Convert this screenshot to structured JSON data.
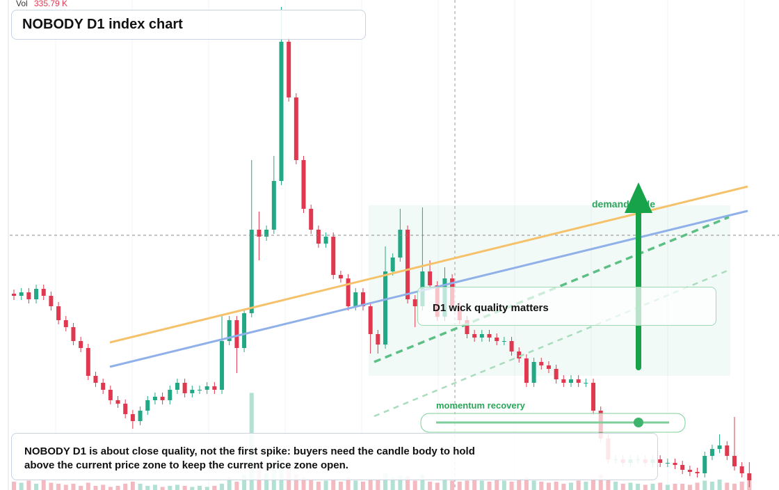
{
  "chart_data": {
    "type": "candlestick",
    "title": "NOBODY D1 index chart",
    "volume_label": "Vol",
    "volume_value_label": "335.79 K",
    "annotations": {
      "wick": "D1 wick quality matters",
      "demand": "demand node",
      "momentum": "momentum recovery",
      "note": "NOBODY D1 is about close quality, not the first spike: buyers need the candle body to hold above the current price zone to keep the current price zone open."
    },
    "up_color": "#22a884",
    "down_color": "#e0384e",
    "ylim": [
      0,
      704
    ],
    "vlim": [
      0,
      1000
    ],
    "open": [
      282,
      279,
      284,
      274,
      289,
      279,
      264,
      244,
      234,
      214,
      204,
      164,
      154,
      144,
      129,
      124,
      109,
      99,
      114,
      129,
      134,
      129,
      144,
      154,
      139,
      144,
      144,
      149,
      144,
      214,
      244,
      204,
      254,
      374,
      364,
      374,
      444,
      644,
      564,
      474,
      404,
      374,
      354,
      364,
      309,
      304,
      264,
      284,
      264,
      224,
      209,
      314,
      334,
      374,
      274,
      264,
      314,
      294,
      249,
      304,
      264,
      244,
      224,
      219,
      224,
      219,
      214,
      214,
      199,
      189,
      154,
      184,
      179,
      174,
      159,
      154,
      159,
      154,
      154,
      114,
      74,
      44,
      44,
      39,
      44,
      44,
      39,
      44,
      39,
      39,
      36,
      29,
      26,
      24,
      49,
      59,
      64,
      49,
      34,
      24
    ],
    "high": [
      288,
      290,
      290,
      295,
      295,
      285,
      270,
      250,
      240,
      220,
      210,
      170,
      160,
      150,
      135,
      130,
      115,
      120,
      135,
      140,
      140,
      150,
      160,
      160,
      150,
      150,
      155,
      155,
      250,
      250,
      250,
      260,
      474,
      400,
      380,
      480,
      694,
      650,
      570,
      480,
      410,
      380,
      370,
      370,
      315,
      310,
      290,
      290,
      270,
      230,
      350,
      340,
      404,
      380,
      280,
      406,
      330,
      300,
      320,
      310,
      270,
      250,
      230,
      230,
      230,
      225,
      220,
      220,
      205,
      195,
      190,
      190,
      185,
      180,
      165,
      165,
      165,
      160,
      160,
      120,
      80,
      50,
      50,
      50,
      50,
      50,
      50,
      50,
      45,
      45,
      42,
      35,
      32,
      55,
      65,
      80,
      70,
      105,
      40,
      40
    ],
    "low": [
      273,
      273,
      268,
      268,
      273,
      258,
      238,
      228,
      208,
      198,
      158,
      148,
      138,
      123,
      118,
      103,
      88,
      93,
      108,
      123,
      123,
      123,
      138,
      133,
      133,
      138,
      138,
      138,
      138,
      208,
      168,
      198,
      248,
      330,
      358,
      368,
      438,
      558,
      468,
      398,
      368,
      348,
      348,
      303,
      298,
      258,
      258,
      258,
      196,
      196,
      203,
      308,
      328,
      268,
      234,
      258,
      288,
      243,
      243,
      258,
      238,
      218,
      213,
      213,
      213,
      208,
      208,
      193,
      183,
      148,
      148,
      173,
      168,
      153,
      148,
      148,
      148,
      148,
      108,
      68,
      38,
      38,
      33,
      33,
      38,
      33,
      33,
      33,
      33,
      30,
      23,
      20,
      18,
      18,
      43,
      53,
      43,
      28,
      18,
      4
    ],
    "close": [
      279,
      284,
      274,
      289,
      279,
      264,
      244,
      234,
      214,
      204,
      164,
      154,
      144,
      129,
      124,
      109,
      99,
      114,
      129,
      134,
      129,
      144,
      154,
      139,
      144,
      144,
      149,
      144,
      214,
      244,
      204,
      254,
      374,
      364,
      374,
      444,
      644,
      564,
      474,
      404,
      374,
      354,
      364,
      309,
      304,
      264,
      284,
      264,
      224,
      209,
      314,
      334,
      374,
      274,
      264,
      314,
      294,
      249,
      304,
      264,
      244,
      224,
      219,
      224,
      219,
      214,
      214,
      199,
      189,
      154,
      184,
      179,
      174,
      159,
      154,
      159,
      154,
      154,
      114,
      74,
      44,
      44,
      39,
      44,
      44,
      39,
      44,
      39,
      39,
      36,
      29,
      26,
      24,
      49,
      59,
      64,
      49,
      34,
      24,
      14
    ],
    "volume": [
      80,
      70,
      90,
      60,
      100,
      70,
      60,
      50,
      60,
      40,
      70,
      40,
      50,
      30,
      40,
      60,
      80,
      60,
      40,
      50,
      30,
      40,
      50,
      40,
      30,
      40,
      30,
      40,
      60,
      120,
      80,
      150,
      930,
      200,
      160,
      280,
      300,
      200,
      150,
      120,
      100,
      80,
      90,
      100,
      80,
      120,
      90,
      80,
      110,
      100,
      160,
      120,
      140,
      130,
      90,
      150,
      80,
      70,
      110,
      90,
      80,
      90,
      100,
      90,
      80,
      100,
      90,
      80,
      100,
      120,
      90,
      80,
      70,
      80,
      60,
      70,
      90,
      80,
      110,
      150,
      100,
      80,
      60,
      70,
      60,
      50,
      60,
      70,
      50,
      60,
      60,
      50,
      70,
      90,
      80,
      100,
      70,
      60,
      80,
      120
    ]
  }
}
